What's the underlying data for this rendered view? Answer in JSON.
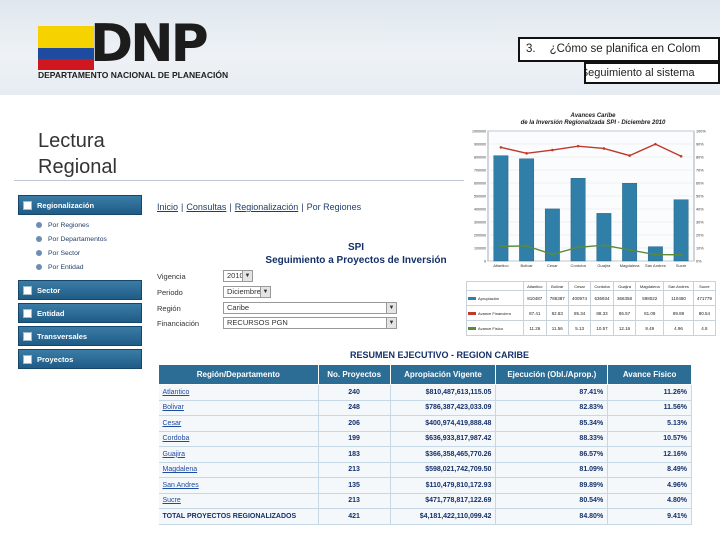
{
  "header": {
    "logo_text": "DNP",
    "logo_subtitle": "DEPARTAMENTO NACIONAL DE PLANEACIÓN",
    "section_number": "3.",
    "section_title": "¿Cómo se planifica en Colom",
    "subsection": "e) Seguimiento al sistema"
  },
  "slide_title": "Lectura Regional",
  "sidebar": {
    "menus": [
      {
        "label": "Regionalización",
        "items": [
          "Por Regiones",
          "Por Departamentos",
          "Por Sector",
          "Por Entidad"
        ]
      },
      {
        "label": "Sector",
        "items": []
      },
      {
        "label": "Entidad",
        "items": []
      },
      {
        "label": "Transversales",
        "items": []
      },
      {
        "label": "Proyectos",
        "items": []
      }
    ]
  },
  "breadcrumb": {
    "items": [
      "Inicio",
      "Consultas",
      "Regionalización",
      "Por Regiones"
    ],
    "separator": "|"
  },
  "spi": {
    "title": "SPI",
    "subtitle": "Seguimiento a Proyectos de Inversión"
  },
  "filters": {
    "vigencia": {
      "label": "Vigencia",
      "value": "2010"
    },
    "periodo": {
      "label": "Periodo",
      "value": "Diciembre"
    },
    "region": {
      "label": "Región",
      "value": "Caribe"
    },
    "financiacion": {
      "label": "Financiación",
      "value": "RECURSOS PGN"
    }
  },
  "resumen": {
    "title": "RESUMEN EJECUTIVO - REGION CARIBE",
    "columns": [
      "Región/Departamento",
      "No. Proyectos",
      "Apropiación Vigente",
      "Ejecución (Obl./Aprop.)",
      "Avance Físico"
    ],
    "rows": [
      [
        "Atlantico",
        "240",
        "$810,487,613,115.05",
        "87.41%",
        "11.26%"
      ],
      [
        "Bolivar",
        "248",
        "$786,387,423,033.09",
        "82.83%",
        "11.56%"
      ],
      [
        "Cesar",
        "206",
        "$400,974,419,888.48",
        "85.34%",
        "5.13%"
      ],
      [
        "Cordoba",
        "199",
        "$636,933,817,987.42",
        "88.33%",
        "10.57%"
      ],
      [
        "Guajira",
        "183",
        "$366,358,465,770.26",
        "86.57%",
        "12.16%"
      ],
      [
        "Magdalena",
        "213",
        "$598,021,742,709.50",
        "81.09%",
        "8.49%"
      ],
      [
        "San Andres",
        "135",
        "$110,479,810,172.93",
        "89.89%",
        "4.96%"
      ],
      [
        "Sucre",
        "213",
        "$471,778,817,122.69",
        "80.54%",
        "4.80%"
      ]
    ],
    "total": [
      "TOTAL PROYECTOS REGIONALIZADOS",
      "421",
      "$4,181,422,110,099.42",
      "84.80%",
      "9.41%"
    ]
  },
  "chart_data": {
    "type": "bar",
    "title": "Avances Caribe",
    "subtitle": "de la Inversión Regionalizada SPI - Diciembre 2010",
    "categories": [
      "Atlantico",
      "Bolivar",
      "Cesar",
      "Cordoba",
      "Guajira",
      "Magdalena",
      "San Andres",
      "Sucre"
    ],
    "series": [
      {
        "name": "Apropiación",
        "kind": "bar",
        "values": [
          810487,
          786387,
          400974,
          636934,
          366358,
          598022,
          110480,
          471779
        ]
      },
      {
        "name": "Avance Financiero",
        "kind": "line",
        "values": [
          87.41,
          82.83,
          85.34,
          88.33,
          86.57,
          81.09,
          89.89,
          80.54
        ]
      },
      {
        "name": "Avance Físico",
        "kind": "line",
        "values": [
          11.26,
          11.56,
          5.13,
          10.57,
          12.16,
          8.49,
          4.96,
          4.8
        ]
      }
    ],
    "ylim": [
      0,
      1000000
    ],
    "y2lim": [
      0,
      100
    ],
    "yticks": [
      "0",
      "100000",
      "200000",
      "300000",
      "400000",
      "500000",
      "600000",
      "700000",
      "800000",
      "900000",
      "1000000"
    ],
    "y2ticks": [
      "0%",
      "10%",
      "20%",
      "30%",
      "40%",
      "50%",
      "60%",
      "70%",
      "80%",
      "90%",
      "100%"
    ],
    "colors": {
      "bar": "#2f7fa8",
      "financiero": "#c0392b",
      "fisico": "#5c8a3a"
    }
  }
}
